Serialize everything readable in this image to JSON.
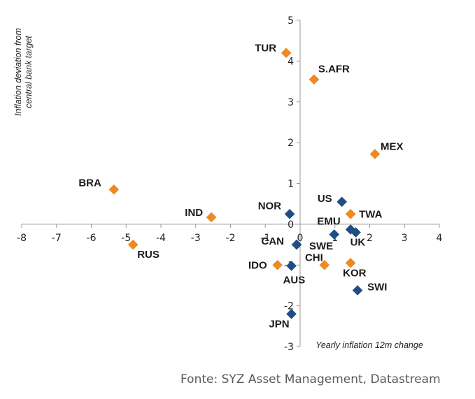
{
  "chart_data": {
    "type": "scatter",
    "xlabel": "Yearly inflation 12m change",
    "ylabel": "Inflation deviation from central bank target",
    "xlim": [
      -8,
      4
    ],
    "ylim": [
      -3,
      5
    ],
    "x_ticks": [
      -8,
      -7,
      -6,
      -5,
      -4,
      -3,
      -2,
      -1,
      0,
      1,
      2,
      3,
      4
    ],
    "y_ticks": [
      -3,
      -2,
      -1,
      0,
      1,
      2,
      3,
      4,
      5
    ],
    "x_tick_labels": [
      "-8",
      "-7",
      "-6",
      "-5",
      "-4",
      "-3",
      "-2",
      "-1",
      "0",
      "1",
      "2",
      "3",
      "4"
    ],
    "y_tick_labels": [
      "-3",
      "-2",
      "-1",
      "0",
      "1",
      "2",
      "3",
      "4",
      "5"
    ],
    "grid": false,
    "series": [
      {
        "name": "orange",
        "color": "#ED8A23",
        "points": [
          {
            "label": "TUR",
            "x": -0.4,
            "y": 4.2
          },
          {
            "label": "S.AFR",
            "x": 0.4,
            "y": 3.55
          },
          {
            "label": "MEX",
            "x": 2.15,
            "y": 1.72
          },
          {
            "label": "BRA",
            "x": -5.35,
            "y": 0.85
          },
          {
            "label": "IND",
            "x": -2.55,
            "y": 0.17
          },
          {
            "label": "TWA",
            "x": 1.45,
            "y": 0.25
          },
          {
            "label": "RUS",
            "x": -4.8,
            "y": -0.5
          },
          {
            "label": "IDO",
            "x": -0.65,
            "y": -1.0
          },
          {
            "label": "CHI",
            "x": 0.7,
            "y": -1.0
          },
          {
            "label": "KOR",
            "x": 1.45,
            "y": -0.95
          }
        ]
      },
      {
        "name": "blue",
        "color": "#1F4E84",
        "points": [
          {
            "label": "US",
            "x": 1.2,
            "y": 0.55
          },
          {
            "label": "NOR",
            "x": -0.3,
            "y": 0.25
          },
          {
            "label": "EMU",
            "x": 0.98,
            "y": -0.25
          },
          {
            "label": "UK",
            "x": 1.6,
            "y": -0.2
          },
          {
            "label": "",
            "x": 1.45,
            "y": -0.13
          },
          {
            "label": "CAN",
            "x": -0.1,
            "y": -0.5
          },
          {
            "label": "SWE",
            "x": -0.1,
            "y": -0.5
          },
          {
            "label": "AUS",
            "x": -0.25,
            "y": -1.02
          },
          {
            "label": "SWI",
            "x": 1.65,
            "y": -1.62
          },
          {
            "label": "JPN",
            "x": -0.25,
            "y": -2.2
          }
        ]
      }
    ]
  },
  "source": "Fonte: SYZ Asset Management, Datastream"
}
